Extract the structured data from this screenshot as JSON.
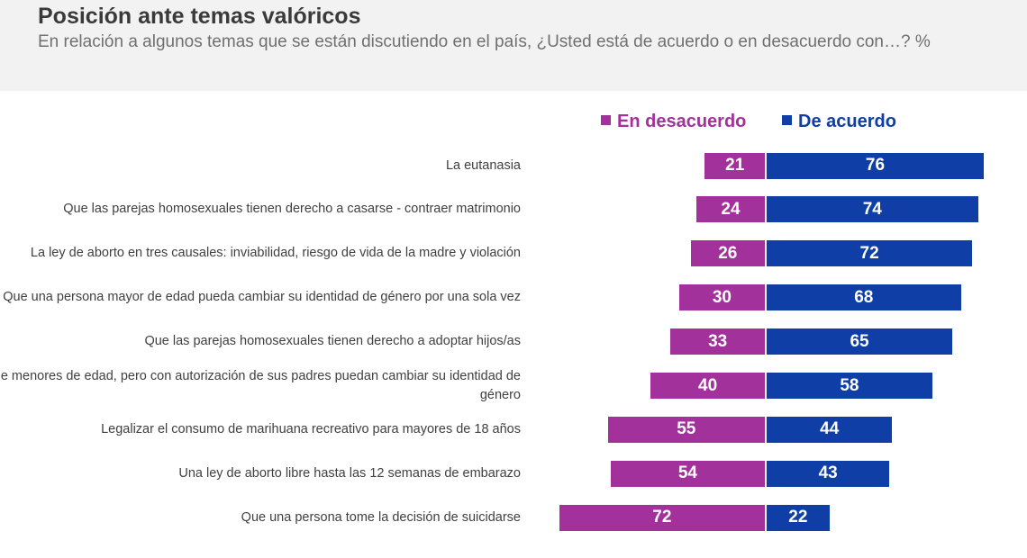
{
  "header": {
    "title": "Posición ante temas valóricos",
    "subtitle": "En relación a algunos temas que se están discutiendo en el país, ¿Usted está de acuerdo o en desacuerdo con…? %"
  },
  "colors": {
    "desacuerdo": "#a3319b",
    "acuerdo": "#0e3ea6",
    "header_bg": "#f2f2f2"
  },
  "chart_data": {
    "type": "bar",
    "orientation": "horizontal-diverging",
    "legend": {
      "position": "top",
      "entries": [
        "En desacuerdo",
        "De acuerdo"
      ]
    },
    "categories": [
      "La eutanasia",
      "Que las parejas homosexuales tienen derecho a casarse - contraer matrimonio",
      "La ley de aborto en tres causales: inviabilidad, riesgo de vida de la madre y violación",
      "Que una persona mayor de edad pueda cambiar su identidad de género por una sola vez",
      "Que las parejas homosexuales tienen derecho a adoptar hijos/as",
      "Que menores de edad, pero con autorización de sus padres puedan cambiar su identidad de género",
      "Legalizar el consumo de marihuana recreativo para mayores de 18 años",
      "Una ley de aborto libre hasta las 12 semanas de embarazo",
      "Que una persona tome la decisión de suicidarse"
    ],
    "series": [
      {
        "name": "En desacuerdo",
        "values": [
          21,
          24,
          26,
          30,
          33,
          40,
          55,
          54,
          72
        ]
      },
      {
        "name": "De acuerdo",
        "values": [
          76,
          74,
          72,
          68,
          65,
          58,
          44,
          43,
          22
        ]
      }
    ]
  }
}
